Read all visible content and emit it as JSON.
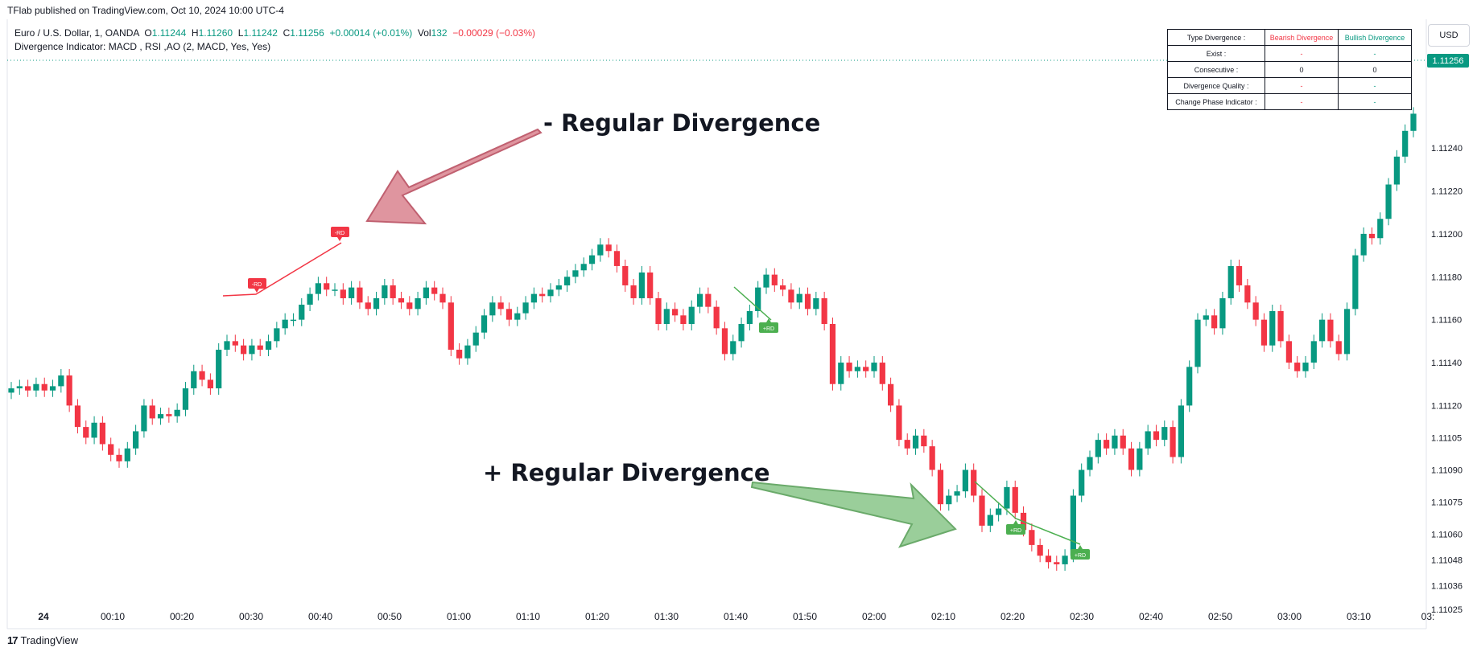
{
  "header": {
    "published_by": "TFlab published on TradingView.com, Oct 10, 2024 10:00 UTC-4",
    "symbol": "Euro / U.S. Dollar, 1, OANDA",
    "o_label": "O",
    "o_value": "1.11244",
    "h_label": "H",
    "h_value": "1.11260",
    "l_label": "L",
    "l_value": "1.11242",
    "c_label": "C",
    "c_value": "1.11256",
    "change": "+0.00014 (+0.01%)",
    "vol_label": "Vol",
    "vol_value": "132",
    "vol_change": "−0.00029 (−0.03%)",
    "indicator": "Divergence Indicator: MACD , RSI ,AO (2, MACD, Yes, Yes)"
  },
  "currency": "USD",
  "table": {
    "header": [
      "Type Divergence :",
      "Bearish Divergence",
      "Bullish Divergence"
    ],
    "rows": [
      [
        "Exist :",
        "-",
        "-"
      ],
      [
        "Consecutive :",
        "0",
        "0"
      ],
      [
        "Divergence Quality :",
        "-",
        "-"
      ],
      [
        "Change Phase Indicator :",
        "-",
        "-"
      ]
    ]
  },
  "annotations": {
    "bearish_text": "- Regular Divergence",
    "bullish_text": "+ Regular Divergence",
    "bear_tag": "-RD",
    "bull_tag": "+RD"
  },
  "footer": {
    "logo": "17",
    "brand": "TradingView"
  },
  "colors": {
    "up": "#089981",
    "down": "#f23645",
    "bear_arrow": "#d9838e",
    "bull_arrow": "#8fc98f",
    "tag_bull": "#4caf50",
    "tag_bear": "#f23645"
  },
  "chart_data": {
    "type": "candlestick",
    "ylim": [
      1.11016,
      1.113
    ],
    "y_ticks": [
      "1.11240",
      "1.11220",
      "1.11200",
      "1.11180",
      "1.11160",
      "1.11140",
      "1.11120",
      "1.11105",
      "1.11090",
      "1.11075",
      "1.11060",
      "1.11048",
      "1.11036",
      "1.11025"
    ],
    "x_ticks": [
      "24",
      "00:10",
      "00:20",
      "00:30",
      "00:40",
      "00:50",
      "01:00",
      "01:10",
      "01:20",
      "01:30",
      "01:40",
      "01:50",
      "02:00",
      "02:10",
      "02:20",
      "02:30",
      "02:40",
      "02:50",
      "03:00",
      "03:10",
      "03:"
    ],
    "last_price": "1.11256",
    "closes": [
      1.11128,
      1.11129,
      1.11127,
      1.1113,
      1.11127,
      1.11129,
      1.11134,
      1.1112,
      1.1111,
      1.11105,
      1.11112,
      1.11102,
      1.11097,
      1.11094,
      1.111,
      1.11108,
      1.1112,
      1.11114,
      1.11116,
      1.11115,
      1.11118,
      1.11128,
      1.11136,
      1.11132,
      1.11128,
      1.11146,
      1.1115,
      1.11148,
      1.11144,
      1.11148,
      1.11146,
      1.1115,
      1.11156,
      1.1116,
      1.1116,
      1.11167,
      1.11172,
      1.11177,
      1.11174,
      1.11174,
      1.1117,
      1.11175,
      1.11168,
      1.11165,
      1.1117,
      1.11176,
      1.1117,
      1.11168,
      1.11165,
      1.1117,
      1.11175,
      1.11172,
      1.11168,
      1.11146,
      1.11142,
      1.11148,
      1.11154,
      1.11162,
      1.11168,
      1.11165,
      1.1116,
      1.11163,
      1.11168,
      1.11172,
      1.11171,
      1.11174,
      1.11176,
      1.1118,
      1.11183,
      1.11186,
      1.1119,
      1.11195,
      1.11192,
      1.11185,
      1.11176,
      1.1117,
      1.11182,
      1.1117,
      1.11158,
      1.11165,
      1.11162,
      1.11158,
      1.11166,
      1.11172,
      1.11166,
      1.11156,
      1.11144,
      1.1115,
      1.11158,
      1.11164,
      1.11175,
      1.11181,
      1.11176,
      1.11174,
      1.11168,
      1.11172,
      1.11165,
      1.1117,
      1.11158,
      1.1113,
      1.1114,
      1.11136,
      1.11138,
      1.11136,
      1.1114,
      1.1113,
      1.1112,
      1.11104,
      1.111,
      1.11106,
      1.11101,
      1.1109,
      1.11074,
      1.11078,
      1.1108,
      1.1109,
      1.11078,
      1.11064,
      1.11069,
      1.11072,
      1.11082,
      1.1107,
      1.11062,
      1.11055,
      1.1105,
      1.11047,
      1.11046,
      1.1105,
      1.11078,
      1.1109,
      1.11096,
      1.11104,
      1.111,
      1.11106,
      1.111,
      1.1109,
      1.111,
      1.11108,
      1.11104,
      1.1111,
      1.11096,
      1.1112,
      1.11138,
      1.1116,
      1.11162,
      1.11156,
      1.1117,
      1.11185,
      1.11176,
      1.11168,
      1.1116,
      1.11148,
      1.11164,
      1.1115,
      1.1114,
      1.11136,
      1.1114,
      1.1115,
      1.1116,
      1.1115,
      1.11144,
      1.11165,
      1.1119,
      1.112,
      1.11198,
      1.11207,
      1.11223,
      1.11236,
      1.11248,
      1.11256
    ]
  }
}
